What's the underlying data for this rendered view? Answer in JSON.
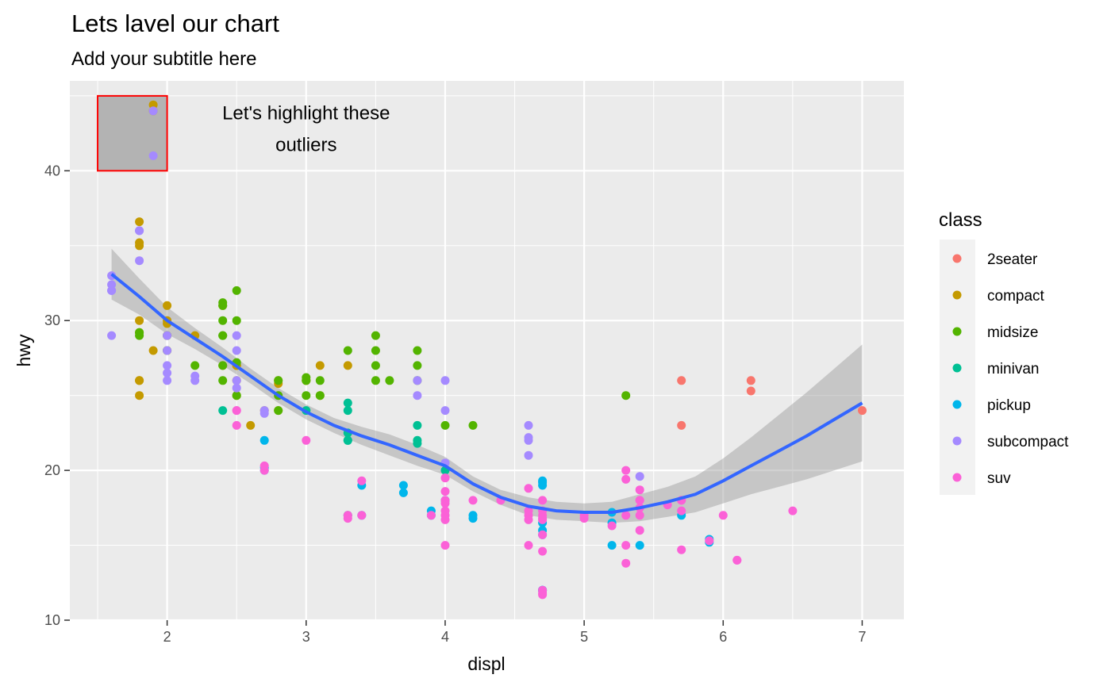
{
  "chart_data": {
    "type": "scatter",
    "title": "Lets lavel our chart",
    "subtitle": "Add your subtitle here",
    "xlabel": "displ",
    "ylabel": "hwy",
    "xlim": [
      1.3,
      7.3
    ],
    "ylim": [
      10,
      46
    ],
    "x_ticks": [
      2,
      3,
      4,
      5,
      6,
      7
    ],
    "y_ticks": [
      10,
      20,
      30,
      40
    ],
    "grid": true,
    "legend": {
      "title": "class",
      "placement": "right",
      "entries": [
        {
          "name": "2seater",
          "color": "#F8766D"
        },
        {
          "name": "compact",
          "color": "#C49A00"
        },
        {
          "name": "midsize",
          "color": "#53B400"
        },
        {
          "name": "minivan",
          "color": "#00C094"
        },
        {
          "name": "pickup",
          "color": "#00B6EB"
        },
        {
          "name": "subcompact",
          "color": "#A58AFF"
        },
        {
          "name": "suv",
          "color": "#FB61D7"
        }
      ]
    },
    "series": [
      {
        "name": "2seater",
        "points": [
          [
            5.7,
            26
          ],
          [
            5.7,
            23
          ],
          [
            6.2,
            25.3
          ],
          [
            6.2,
            26
          ],
          [
            7.0,
            24
          ]
        ]
      },
      {
        "name": "compact",
        "points": [
          [
            1.8,
            29.2
          ],
          [
            1.8,
            26
          ],
          [
            2.0,
            31
          ],
          [
            2.0,
            30
          ],
          [
            2.8,
            26
          ],
          [
            2.8,
            25.8
          ],
          [
            3.1,
            27
          ],
          [
            1.8,
            25
          ],
          [
            1.9,
            44
          ],
          [
            1.9,
            44.4
          ],
          [
            2.0,
            28
          ],
          [
            2.0,
            29
          ],
          [
            2.0,
            29.8
          ],
          [
            2.5,
            27
          ],
          [
            2.5,
            25
          ],
          [
            2.5,
            26
          ],
          [
            2.2,
            29
          ],
          [
            2.4,
            27
          ],
          [
            2.5,
            27
          ],
          [
            3.0,
            26
          ],
          [
            1.8,
            35
          ],
          [
            1.8,
            35.2
          ],
          [
            1.8,
            36.6
          ],
          [
            2.7,
            24
          ],
          [
            2.8,
            24
          ],
          [
            2.4,
            31
          ],
          [
            2.5,
            27
          ],
          [
            3.3,
            27
          ],
          [
            3.1,
            25
          ],
          [
            3.0,
            26
          ],
          [
            2.6,
            23
          ],
          [
            1.8,
            26
          ],
          [
            1.9,
            28
          ],
          [
            1.8,
            30
          ]
        ]
      },
      {
        "name": "midsize",
        "points": [
          [
            2.4,
            31
          ],
          [
            2.4,
            30
          ],
          [
            2.4,
            31.2
          ],
          [
            2.5,
            30
          ],
          [
            2.5,
            32
          ],
          [
            3.1,
            26
          ],
          [
            3.3,
            28
          ],
          [
            3.5,
            29
          ],
          [
            3.5,
            28
          ],
          [
            3.8,
            28
          ],
          [
            3.8,
            27
          ],
          [
            3.8,
            26
          ],
          [
            4.2,
            23
          ],
          [
            5.3,
            25
          ],
          [
            2.8,
            26
          ],
          [
            2.8,
            24
          ],
          [
            3.1,
            25
          ],
          [
            3.5,
            27
          ],
          [
            3.5,
            26
          ],
          [
            3.6,
            26
          ],
          [
            2.4,
            29
          ],
          [
            2.4,
            27
          ],
          [
            3.0,
            26
          ],
          [
            3.0,
            25
          ],
          [
            4.0,
            23
          ],
          [
            1.8,
            29
          ],
          [
            1.8,
            29.2
          ],
          [
            2.0,
            29
          ],
          [
            2.0,
            28
          ],
          [
            2.8,
            25
          ],
          [
            2.2,
            27
          ],
          [
            2.4,
            26
          ],
          [
            2.5,
            25
          ],
          [
            2.5,
            27.2
          ],
          [
            3.0,
            26.2
          ],
          [
            2.4,
            29
          ]
        ]
      },
      {
        "name": "minivan",
        "points": [
          [
            2.4,
            24
          ],
          [
            3.0,
            24
          ],
          [
            3.3,
            22
          ],
          [
            3.3,
            24
          ],
          [
            3.3,
            24.5
          ],
          [
            3.3,
            22.5
          ],
          [
            3.3,
            17
          ],
          [
            3.8,
            22
          ],
          [
            3.8,
            21.8
          ],
          [
            3.8,
            23
          ],
          [
            4.0,
            20
          ],
          [
            3.3,
            22
          ]
        ]
      },
      {
        "name": "pickup",
        "points": [
          [
            2.7,
            20
          ],
          [
            2.7,
            20.2
          ],
          [
            2.7,
            22
          ],
          [
            3.4,
            19
          ],
          [
            3.4,
            17
          ],
          [
            3.7,
            18.5
          ],
          [
            3.7,
            19
          ],
          [
            3.9,
            17.3
          ],
          [
            3.9,
            17
          ],
          [
            4.0,
            18
          ],
          [
            4.2,
            17
          ],
          [
            4.2,
            16.8
          ],
          [
            4.7,
            19.3
          ],
          [
            4.7,
            19
          ],
          [
            4.7,
            15.7
          ],
          [
            4.7,
            16
          ],
          [
            4.7,
            12
          ],
          [
            4.7,
            12
          ],
          [
            4.7,
            12
          ],
          [
            5.2,
            17.2
          ],
          [
            5.2,
            15
          ],
          [
            5.7,
            17
          ],
          [
            5.9,
            15.2
          ],
          [
            5.9,
            15.4
          ],
          [
            4.7,
            16.5
          ],
          [
            4.7,
            19.2
          ],
          [
            5.2,
            16.5
          ],
          [
            5.4,
            15
          ]
        ]
      },
      {
        "name": "subcompact",
        "points": [
          [
            1.6,
            33
          ],
          [
            1.6,
            32
          ],
          [
            1.6,
            32.4
          ],
          [
            1.6,
            32
          ],
          [
            1.6,
            29
          ],
          [
            1.8,
            34
          ],
          [
            1.8,
            36
          ],
          [
            1.8,
            36
          ],
          [
            2.0,
            29
          ],
          [
            1.9,
            44
          ],
          [
            1.9,
            41
          ],
          [
            2.0,
            26
          ],
          [
            2.0,
            26.5
          ],
          [
            2.0,
            27
          ],
          [
            2.0,
            28
          ],
          [
            2.2,
            26
          ],
          [
            2.2,
            26.3
          ],
          [
            2.5,
            29
          ],
          [
            2.5,
            28
          ],
          [
            2.5,
            25.5
          ],
          [
            2.5,
            26
          ],
          [
            3.8,
            25
          ],
          [
            3.8,
            26
          ],
          [
            4.0,
            24
          ],
          [
            4.0,
            26
          ],
          [
            4.6,
            21
          ],
          [
            4.6,
            22
          ],
          [
            4.6,
            22.2
          ],
          [
            4.6,
            23
          ],
          [
            5.4,
            19.6
          ],
          [
            4.0,
            20.5
          ],
          [
            2.7,
            24
          ],
          [
            2.7,
            23.8
          ]
        ]
      },
      {
        "name": "suv",
        "points": [
          [
            5.3,
            20
          ],
          [
            5.3,
            19.4
          ],
          [
            5.3,
            15
          ],
          [
            5.7,
            14.7
          ],
          [
            6.5,
            17.3
          ],
          [
            2.5,
            23
          ],
          [
            2.5,
            24
          ],
          [
            3.0,
            22
          ],
          [
            4.0,
            17
          ],
          [
            4.0,
            19.5
          ],
          [
            4.0,
            17.3
          ],
          [
            4.0,
            15
          ],
          [
            4.6,
            17
          ],
          [
            5.0,
            17
          ],
          [
            4.2,
            18
          ],
          [
            4.7,
            18
          ],
          [
            4.7,
            17
          ],
          [
            4.7,
            14.6
          ],
          [
            4.7,
            16.8
          ],
          [
            5.4,
            17
          ],
          [
            5.4,
            18
          ],
          [
            5.4,
            16
          ],
          [
            5.7,
            18
          ],
          [
            6.1,
            14
          ],
          [
            5.3,
            17
          ],
          [
            5.0,
            16.8
          ],
          [
            5.6,
            17.7
          ],
          [
            5.7,
            17.3
          ],
          [
            4.6,
            15
          ],
          [
            5.4,
            18
          ],
          [
            5.7,
            18
          ],
          [
            6.0,
            17
          ],
          [
            3.4,
            17
          ],
          [
            4.0,
            16.7
          ],
          [
            4.0,
            18
          ],
          [
            4.6,
            18.8
          ],
          [
            2.7,
            20
          ],
          [
            2.7,
            20.3
          ],
          [
            4.6,
            17.3
          ],
          [
            5.4,
            18.7
          ],
          [
            5.9,
            15.3
          ],
          [
            6.1,
            14
          ],
          [
            4.7,
            11.7
          ],
          [
            4.7,
            11.8
          ],
          [
            4.7,
            12
          ],
          [
            2.5,
            24
          ],
          [
            3.3,
            17
          ],
          [
            3.3,
            16.8
          ],
          [
            3.4,
            19.3
          ],
          [
            3.9,
            17
          ],
          [
            4.4,
            18
          ],
          [
            4.6,
            16.7
          ],
          [
            4.7,
            15.7
          ],
          [
            5.3,
            13.8
          ],
          [
            5.4,
            17.5
          ],
          [
            5.2,
            16.3
          ],
          [
            4.0,
            19.5
          ],
          [
            4.0,
            18.6
          ],
          [
            4.0,
            17.8
          ],
          [
            4.7,
            17.3
          ],
          [
            4.7,
            16.7
          ]
        ]
      }
    ],
    "smooth": {
      "method": "loess",
      "color": "#3366FF",
      "x": [
        1.6,
        1.8,
        2.0,
        2.2,
        2.4,
        2.6,
        2.8,
        3.0,
        3.2,
        3.4,
        3.6,
        3.8,
        4.0,
        4.2,
        4.4,
        4.6,
        4.8,
        5.0,
        5.2,
        5.4,
        5.6,
        5.8,
        6.0,
        6.2,
        6.4,
        6.6,
        6.8,
        7.0
      ],
      "y": [
        33.1,
        31.6,
        30.0,
        28.8,
        27.6,
        26.3,
        25.0,
        23.9,
        23.0,
        22.3,
        21.7,
        21.0,
        20.3,
        19.1,
        18.2,
        17.6,
        17.3,
        17.2,
        17.2,
        17.5,
        17.9,
        18.4,
        19.3,
        20.3,
        21.3,
        22.3,
        23.4,
        24.5
      ],
      "lower": [
        31.4,
        30.4,
        29.1,
        28.1,
        27.0,
        25.8,
        24.5,
        23.4,
        22.5,
        21.7,
        21.0,
        20.3,
        19.7,
        18.6,
        17.7,
        17.0,
        16.7,
        16.6,
        16.5,
        16.6,
        16.9,
        17.2,
        17.8,
        18.4,
        18.9,
        19.4,
        20.0,
        20.6
      ],
      "upper": [
        34.8,
        32.8,
        30.9,
        29.5,
        28.2,
        26.8,
        25.5,
        24.4,
        23.5,
        22.9,
        22.4,
        21.7,
        20.9,
        19.6,
        18.7,
        18.2,
        17.9,
        17.8,
        17.9,
        18.4,
        18.9,
        19.6,
        20.8,
        22.2,
        23.7,
        25.2,
        26.8,
        28.4
      ]
    },
    "annotations": {
      "rect": {
        "xmin": 1.5,
        "xmax": 2.0,
        "ymin": 40,
        "ymax": 45,
        "fill": "#b3b3b3",
        "stroke": "#FF0000"
      },
      "text_lines": [
        "Let's highlight these",
        "outliers"
      ],
      "text_x": 3.0,
      "text_y": 42.8
    }
  }
}
